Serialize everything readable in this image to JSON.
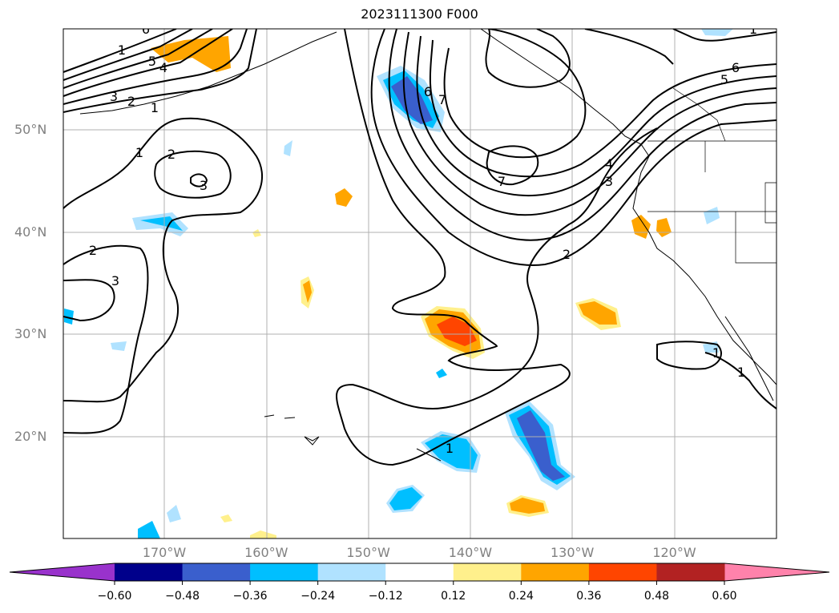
{
  "title": "2023111300 F000",
  "lat_labels": [
    {
      "text": "50°N",
      "lat": 50
    },
    {
      "text": "40°N",
      "lat": 40
    },
    {
      "text": "30°N",
      "lat": 30
    },
    {
      "text": "20°N",
      "lat": 20
    }
  ],
  "lon_labels": [
    {
      "text": "170°W",
      "lon": -170
    },
    {
      "text": "160°W",
      "lon": -160
    },
    {
      "text": "150°W",
      "lon": -150
    },
    {
      "text": "140°W",
      "lon": -140
    },
    {
      "text": "130°W",
      "lon": -130
    },
    {
      "text": "120°W",
      "lon": -120
    }
  ],
  "colorbar": {
    "colors": [
      "#9932cc",
      "#00008b",
      "#3a5fcd",
      "#00bfff",
      "#b0e2ff",
      "#ffffff",
      "#fff08c",
      "#ffa500",
      "#ff4500",
      "#b22222",
      "#ff82ab"
    ],
    "ticks": [
      "−0.60",
      "−0.48",
      "−0.36",
      "−0.24",
      "−0.12",
      "0.12",
      "0.24",
      "0.36",
      "0.48",
      "0.60"
    ]
  },
  "contour_labels": [
    "6",
    "1",
    "5",
    "4",
    "3",
    "2",
    "1",
    "1",
    "2",
    "3",
    "2",
    "3",
    "6",
    "7",
    "7",
    "2",
    "6",
    "5",
    "4",
    "3",
    "1",
    "1",
    "1",
    "1"
  ]
}
